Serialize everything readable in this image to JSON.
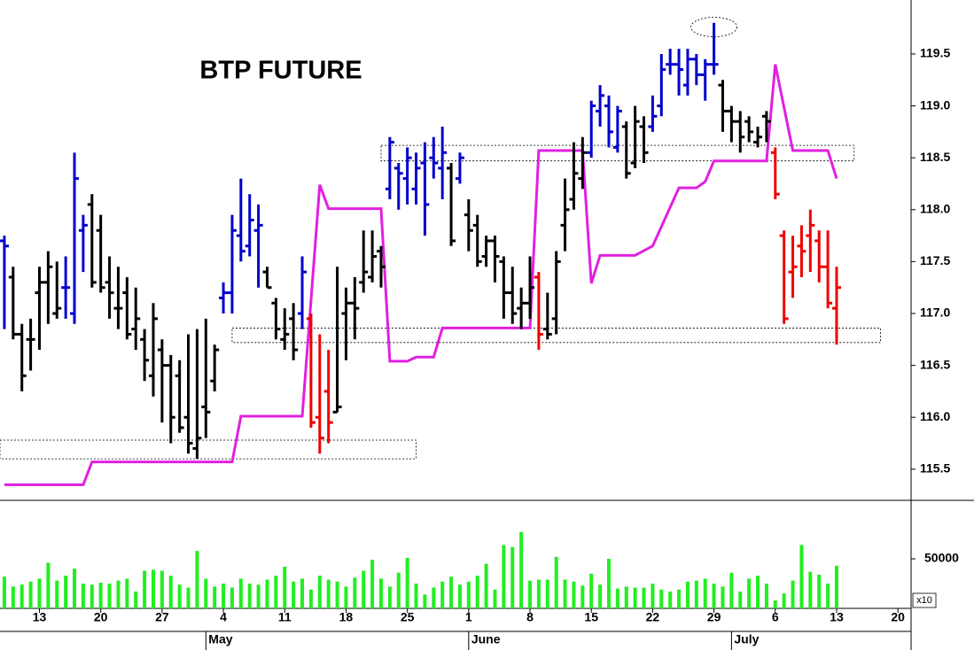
{
  "chart_data": [
    {
      "type": "ohlc",
      "title": "BTP FUTURE",
      "x": [
        9,
        10,
        11,
        12,
        13,
        14,
        15,
        16,
        17,
        18,
        19,
        20,
        21,
        22,
        23,
        24,
        25,
        26,
        27,
        28,
        29,
        30,
        31,
        32,
        33,
        34,
        35,
        36,
        37,
        38,
        39,
        40,
        41,
        42,
        43,
        44,
        45,
        46,
        47,
        48,
        49,
        50,
        51,
        52,
        53,
        54,
        55,
        56,
        57,
        58,
        59,
        60,
        61,
        62,
        63,
        64,
        65,
        66,
        67,
        68,
        69,
        70,
        71,
        72,
        73,
        74,
        75,
        76,
        77,
        78,
        79,
        80,
        81,
        82,
        83,
        84,
        85,
        86,
        87,
        88,
        89,
        90,
        91,
        92,
        93,
        94,
        95,
        96,
        97,
        98,
        99,
        100,
        101,
        102,
        103,
        104
      ],
      "open": [
        117.7,
        117.35,
        116.8,
        116.75,
        117.2,
        117.3,
        117.0,
        117.25,
        117.0,
        117.8,
        118.05,
        117.8,
        117.3,
        117.05,
        117.2,
        116.85,
        116.75,
        116.4,
        116.65,
        116.5,
        116.4,
        116.0,
        115.7,
        116.1,
        116.35,
        117.15,
        117.2,
        117.75,
        117.65,
        117.8,
        117.4,
        117.1,
        116.75,
        116.95,
        117.0,
        116.95,
        116.0,
        116.25,
        116.05,
        117.0,
        117.1,
        117.3,
        117.35,
        117.6,
        118.2,
        118.4,
        118.3,
        118.2,
        118.45,
        118.5,
        118.4,
        118.4,
        118.3,
        117.95,
        117.85,
        117.55,
        117.7,
        117.5,
        117.2,
        117.05,
        117.1,
        117.35,
        116.85,
        116.95,
        117.85,
        118.1,
        118.3,
        118.55,
        118.95,
        119.0,
        118.6,
        118.8,
        118.45,
        118.8,
        118.8,
        119.0,
        119.4,
        119.4,
        119.2,
        119.45,
        119.3,
        119.4,
        119.2,
        118.95,
        118.85,
        118.85,
        118.65,
        118.9,
        118.55,
        117.75,
        117.4,
        117.65,
        117.75,
        117.7,
        117.45,
        117.05
      ],
      "high": [
        117.75,
        117.45,
        116.9,
        116.95,
        117.45,
        117.6,
        117.5,
        117.55,
        118.55,
        117.95,
        118.15,
        117.95,
        117.55,
        117.45,
        117.35,
        117.25,
        116.85,
        117.1,
        116.75,
        116.6,
        116.55,
        116.8,
        116.85,
        116.95,
        116.7,
        117.3,
        117.95,
        118.3,
        118.15,
        118.05,
        117.45,
        117.15,
        117.05,
        117.1,
        117.55,
        117.0,
        116.8,
        116.65,
        117.45,
        117.25,
        117.35,
        117.8,
        117.8,
        117.65,
        118.7,
        118.45,
        118.6,
        118.55,
        118.65,
        118.7,
        118.8,
        118.45,
        118.55,
        118.1,
        117.95,
        117.75,
        117.75,
        117.55,
        117.45,
        117.25,
        117.55,
        117.4,
        117.2,
        117.6,
        118.3,
        118.65,
        118.7,
        119.05,
        119.2,
        119.1,
        119.0,
        118.85,
        119.0,
        118.9,
        119.1,
        119.5,
        119.55,
        119.55,
        119.55,
        119.5,
        119.45,
        119.8,
        119.25,
        119.0,
        118.95,
        118.9,
        118.8,
        118.95,
        118.6,
        117.8,
        117.75,
        117.85,
        118.0,
        117.8,
        117.8,
        117.45
      ],
      "low": [
        116.85,
        116.75,
        116.25,
        116.45,
        116.65,
        116.9,
        116.95,
        116.95,
        116.9,
        117.4,
        117.25,
        117.2,
        116.95,
        116.85,
        116.75,
        116.65,
        116.35,
        116.2,
        115.95,
        115.75,
        115.85,
        115.65,
        115.6,
        115.8,
        116.25,
        117.0,
        117.0,
        117.5,
        117.55,
        117.25,
        117.25,
        116.75,
        116.65,
        116.55,
        116.85,
        115.9,
        115.65,
        115.75,
        116.05,
        116.55,
        116.75,
        117.2,
        117.3,
        117.25,
        118.1,
        118.0,
        118.05,
        118.05,
        117.75,
        118.3,
        118.1,
        117.65,
        118.25,
        117.6,
        117.45,
        117.45,
        117.3,
        116.95,
        116.9,
        116.85,
        116.95,
        116.65,
        116.75,
        116.8,
        117.6,
        118.0,
        118.2,
        118.5,
        118.8,
        118.6,
        118.55,
        118.3,
        118.4,
        118.45,
        118.75,
        118.9,
        119.3,
        119.1,
        119.1,
        119.2,
        119.05,
        119.3,
        118.75,
        118.65,
        118.55,
        118.65,
        118.6,
        118.65,
        118.1,
        116.9,
        117.15,
        117.35,
        117.4,
        117.3,
        117.05,
        116.7
      ],
      "close": [
        117.65,
        116.8,
        116.4,
        116.75,
        117.3,
        117.45,
        117.05,
        117.25,
        118.3,
        117.85,
        117.3,
        117.25,
        117.2,
        117.05,
        116.8,
        116.95,
        116.55,
        116.95,
        116.5,
        116.0,
        115.9,
        115.75,
        115.8,
        116.05,
        116.65,
        117.2,
        117.8,
        117.6,
        117.9,
        117.85,
        117.25,
        116.85,
        116.8,
        116.65,
        117.4,
        115.95,
        115.8,
        115.95,
        116.1,
        117.1,
        117.05,
        117.4,
        117.55,
        117.45,
        118.65,
        118.35,
        118.5,
        118.4,
        118.05,
        118.45,
        118.55,
        117.7,
        118.5,
        117.8,
        117.5,
        117.7,
        117.55,
        117.2,
        117.0,
        117.1,
        117.25,
        116.8,
        116.8,
        117.5,
        118.0,
        118.35,
        118.55,
        119.0,
        119.1,
        118.75,
        118.95,
        118.35,
        118.85,
        118.55,
        118.9,
        119.35,
        119.4,
        119.35,
        119.45,
        119.3,
        119.4,
        119.4,
        118.95,
        118.85,
        118.7,
        118.75,
        118.7,
        118.85,
        118.15,
        116.95,
        117.45,
        117.6,
        117.85,
        117.45,
        117.1,
        117.25
      ],
      "colors": [
        "#0000cc",
        "#000000",
        "#000000",
        "#000000",
        "#000000",
        "#000000",
        "#000000",
        "#0000cc",
        "#0000cc",
        "#0000cc",
        "#000000",
        "#000000",
        "#000000",
        "#000000",
        "#000000",
        "#000000",
        "#000000",
        "#000000",
        "#000000",
        "#000000",
        "#000000",
        "#000000",
        "#000000",
        "#000000",
        "#000000",
        "#0000cc",
        "#0000cc",
        "#0000cc",
        "#0000cc",
        "#0000cc",
        "#000000",
        "#000000",
        "#000000",
        "#000000",
        "#0000cc",
        "#ee0000",
        "#ee0000",
        "#ee0000",
        "#000000",
        "#000000",
        "#000000",
        "#000000",
        "#000000",
        "#000000",
        "#0000cc",
        "#0000cc",
        "#0000cc",
        "#0000cc",
        "#0000cc",
        "#0000cc",
        "#0000cc",
        "#000000",
        "#0000cc",
        "#000000",
        "#000000",
        "#000000",
        "#000000",
        "#000000",
        "#000000",
        "#000000",
        "#000000",
        "#ee0000",
        "#000000",
        "#000000",
        "#000000",
        "#000000",
        "#000000",
        "#0000cc",
        "#0000cc",
        "#0000cc",
        "#0000cc",
        "#000000",
        "#000000",
        "#000000",
        "#0000cc",
        "#0000cc",
        "#0000cc",
        "#0000cc",
        "#0000cc",
        "#0000cc",
        "#0000cc",
        "#0000cc",
        "#000000",
        "#000000",
        "#000000",
        "#000000",
        "#000000",
        "#000000",
        "#ee0000",
        "#ee0000",
        "#ee0000",
        "#ee0000",
        "#ee0000",
        "#ee0000",
        "#ee0000",
        "#ee0000"
      ],
      "line": {
        "color": "#e020e0",
        "x": [
          9,
          18,
          19,
          35,
          36,
          43,
          45,
          46,
          52,
          53,
          55,
          56,
          58,
          59,
          69,
          70,
          75,
          76,
          77,
          81,
          83,
          86,
          88,
          89,
          90,
          96,
          97,
          99,
          103,
          104
        ],
        "values": [
          115.35,
          115.35,
          115.57,
          115.57,
          116.01,
          116.01,
          118.24,
          118.01,
          118.01,
          116.54,
          116.54,
          116.58,
          116.58,
          116.86,
          116.86,
          118.57,
          118.57,
          117.29,
          117.56,
          117.56,
          117.65,
          118.21,
          118.21,
          118.27,
          118.47,
          118.47,
          119.4,
          118.57,
          118.57,
          118.3
        ]
      },
      "zones": [
        {
          "x": [
            8.5,
            56
          ],
          "y": [
            115.6,
            115.78
          ]
        },
        {
          "x": [
            35,
            109
          ],
          "y": [
            116.72,
            116.86
          ]
        },
        {
          "x": [
            52,
            106
          ],
          "y": [
            118.47,
            118.62
          ]
        }
      ],
      "highlight": {
        "x": 90,
        "y": 119.76
      },
      "xlim": [
        8.5,
        112.5
      ],
      "ylim": [
        115.2,
        120.02
      ],
      "yticks": [
        115.5,
        {
          "value": 116,
          "label": "116.0"
        },
        116.5,
        {
          "value": 117,
          "label": "117.0"
        },
        117.5,
        {
          "value": 118,
          "label": "118.0"
        },
        118.5,
        {
          "value": 119,
          "label": "119.0"
        },
        119.5
      ],
      "xticks": [
        13,
        20,
        27,
        {
          "value": 34,
          "label": "4"
        },
        {
          "value": 41,
          "label": "11"
        },
        {
          "value": 48,
          "label": "18"
        },
        {
          "value": 55,
          "label": "25"
        },
        {
          "value": 62,
          "label": "1"
        },
        {
          "value": 69,
          "label": "8"
        },
        {
          "value": 76,
          "label": "15"
        },
        {
          "value": 83,
          "label": "22"
        },
        {
          "value": 90,
          "label": "29"
        },
        {
          "value": 97,
          "label": "6"
        },
        {
          "value": 104,
          "label": "13"
        },
        {
          "value": 111,
          "label": "20"
        }
      ],
      "month_labels": [
        {
          "value": 32,
          "label": "May"
        },
        {
          "value": 62,
          "label": "June"
        },
        {
          "value": 92,
          "label": "July"
        }
      ]
    },
    {
      "type": "volume",
      "color": "#22ee22",
      "unit_label": "x10",
      "values": [
        32000,
        22000,
        24000,
        27000,
        30000,
        46000,
        28000,
        33000,
        40000,
        25000,
        24000,
        26000,
        25000,
        28000,
        30000,
        17000,
        38000,
        39000,
        38000,
        33000,
        24000,
        21000,
        58000,
        30000,
        22000,
        25000,
        21000,
        30000,
        25000,
        24000,
        29000,
        33000,
        42000,
        27000,
        30000,
        19000,
        33000,
        29000,
        27000,
        22000,
        31000,
        38000,
        49000,
        30000,
        22000,
        36000,
        51000,
        25000,
        14000,
        21000,
        27000,
        32000,
        24000,
        27000,
        33000,
        45000,
        19000,
        64000,
        62000,
        77000,
        28000,
        29000,
        29000,
        52000,
        29000,
        27000,
        23000,
        35000,
        24000,
        50000,
        20000,
        22000,
        21000,
        21000,
        25000,
        19000,
        17000,
        19000,
        27000,
        28000,
        30000,
        25000,
        22000,
        36000,
        17000,
        30000,
        33000,
        25000,
        8000,
        15000,
        28000,
        64000,
        37000,
        34000,
        25000,
        43000
      ],
      "ylim": [
        0,
        109000
      ],
      "yticks": [
        50000
      ]
    }
  ]
}
